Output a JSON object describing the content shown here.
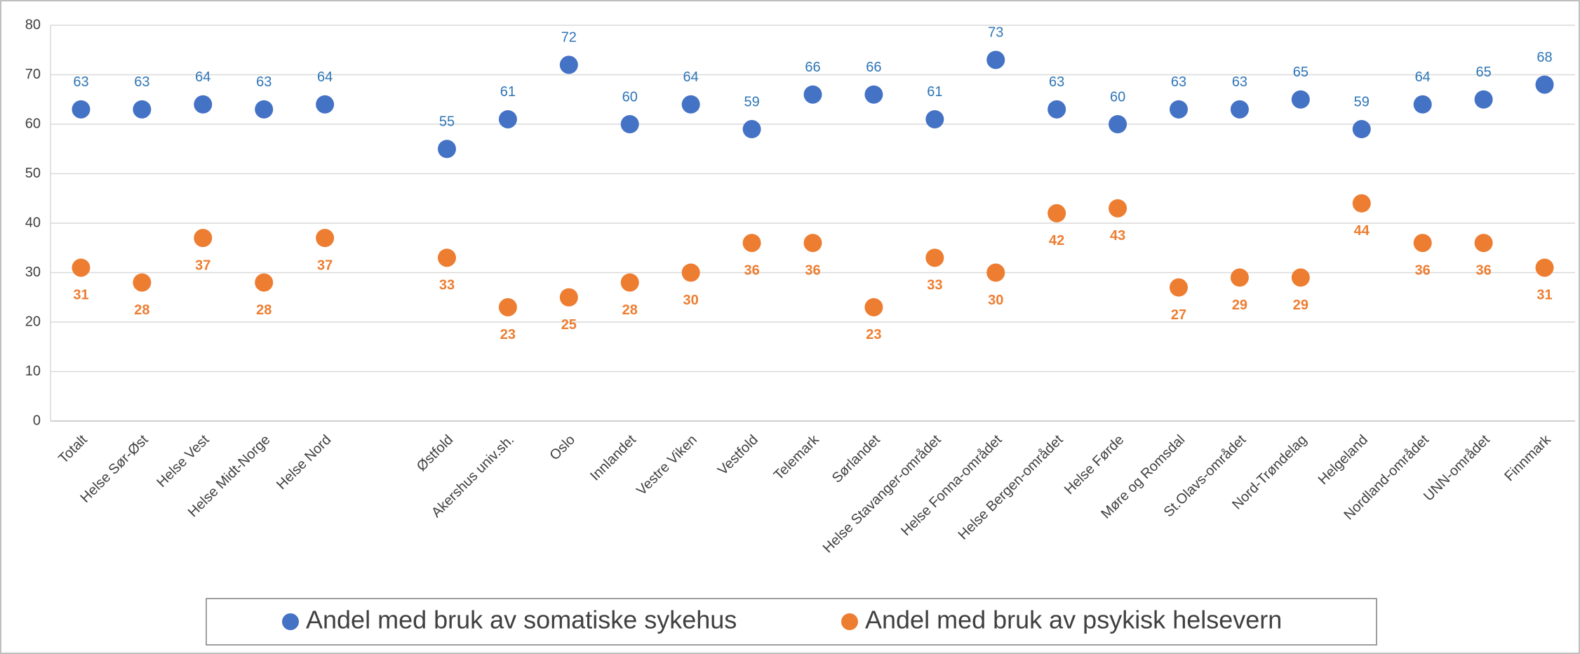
{
  "chart_data": {
    "type": "scatter",
    "categories": [
      "Totalt",
      "Helse Sør-Øst",
      "Helse Vest",
      "Helse Midt-Norge",
      "Helse Nord",
      null,
      "Østfold",
      "Akershus univ.sh.",
      "Oslo",
      "Innlandet",
      "Vestre Viken",
      "Vestfold",
      "Telemark",
      "Sørlandet",
      "Helse Stavanger-området",
      "Helse Fonna-området",
      "Helse Bergen-området",
      "Helse Førde",
      "Møre og Romsdal",
      "St.Olavs-området",
      "Nord-Trøndelag",
      "Helgeland",
      "Nordland-området",
      "UNN-området",
      "Finnmark"
    ],
    "series": [
      {
        "name": "Andel med bruk av somatiske sykehus",
        "color": "#4472c4",
        "label_color": "#2e75b6",
        "values": [
          63,
          63,
          64,
          63,
          64,
          null,
          55,
          61,
          72,
          60,
          64,
          59,
          66,
          66,
          61,
          73,
          63,
          60,
          63,
          63,
          65,
          59,
          64,
          65,
          68
        ]
      },
      {
        "name": "Andel med bruk av psykisk helsevern",
        "color": "#ed7d31",
        "label_color": "#ed7d31",
        "values": [
          31,
          28,
          37,
          28,
          37,
          null,
          33,
          23,
          25,
          28,
          30,
          36,
          36,
          23,
          33,
          30,
          42,
          43,
          27,
          29,
          29,
          44,
          36,
          36,
          31
        ]
      }
    ],
    "ylim": [
      0,
      80
    ],
    "yticks": [
      0,
      10,
      20,
      30,
      40,
      50,
      60,
      70,
      80
    ],
    "grid": true,
    "legend": "bottom"
  }
}
